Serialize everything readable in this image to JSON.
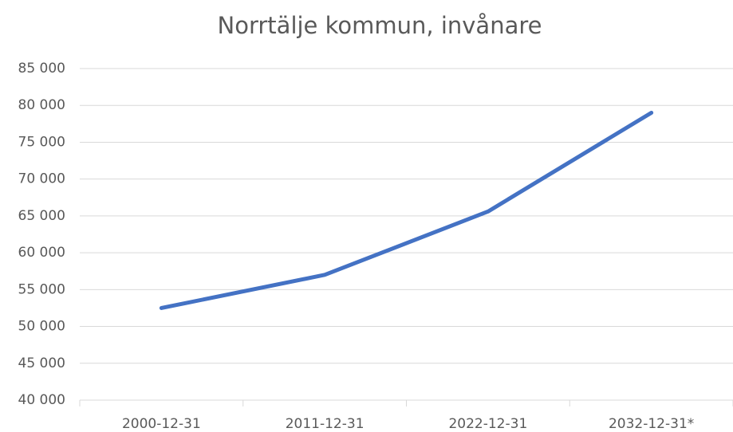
{
  "chart_data": {
    "type": "line",
    "title": "Norrtälje kommun, invånare",
    "categories": [
      "2000-12-31",
      "2011-12-31",
      "2022-12-31",
      "2032-12-31*"
    ],
    "series": [
      {
        "name": "Invånare",
        "color": "#4472c4",
        "values": [
          52500,
          57000,
          65600,
          79000
        ]
      }
    ],
    "ylim": [
      40000,
      85000
    ],
    "yticks": [
      {
        "value": 40000,
        "label": "40 000"
      },
      {
        "value": 45000,
        "label": "45 000"
      },
      {
        "value": 50000,
        "label": "50 000"
      },
      {
        "value": 55000,
        "label": "55 000"
      },
      {
        "value": 60000,
        "label": "60 000"
      },
      {
        "value": 65000,
        "label": "65 000"
      },
      {
        "value": 70000,
        "label": "70 000"
      },
      {
        "value": 75000,
        "label": "75 000"
      },
      {
        "value": 80000,
        "label": "80 000"
      },
      {
        "value": 85000,
        "label": "85 000"
      }
    ],
    "grid": true
  }
}
